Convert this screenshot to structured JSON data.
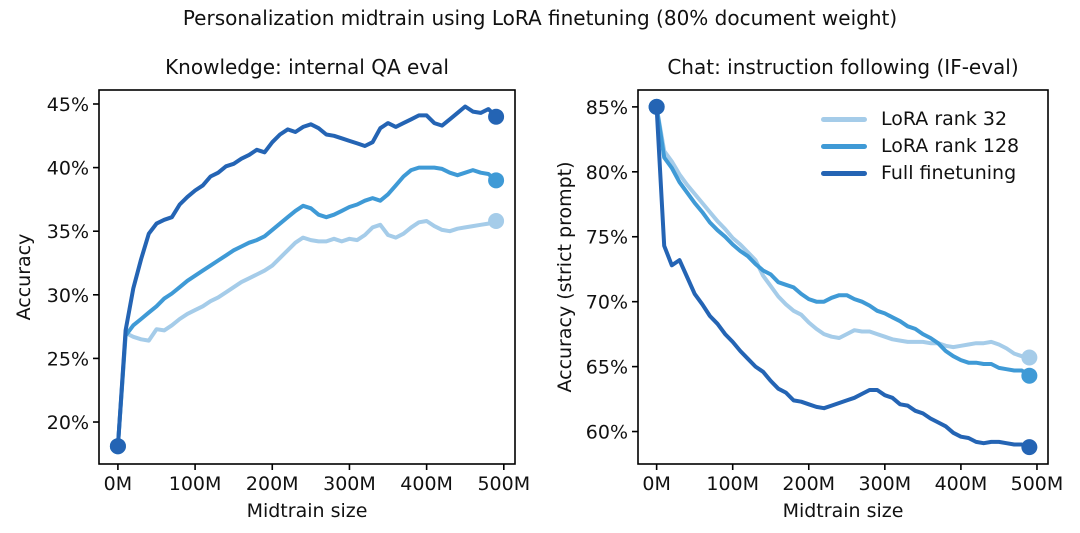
{
  "figure": {
    "title": "Personalization midtrain using LoRA finetuning (80% document weight)"
  },
  "colors": {
    "lora_rank_32": "#a5cce9",
    "lora_rank_128": "#3f9ad6",
    "full_finetuning": "#2464b4"
  },
  "legend": {
    "entries": [
      {
        "label": "LoRA rank 32",
        "color": "#a5cce9"
      },
      {
        "label": "LoRA rank 128",
        "color": "#3f9ad6"
      },
      {
        "label": "Full finetuning",
        "color": "#2464b4"
      }
    ]
  },
  "chart_data": [
    {
      "type": "line",
      "title": "Knowledge: internal QA eval",
      "xlabel": "Midtrain size",
      "ylabel": "Accuracy",
      "legend_position": "none",
      "grid": false,
      "xlim": [
        -24.5,
        514.5
      ],
      "ylim": [
        16.7,
        46.1
      ],
      "xticks": [
        0,
        100,
        200,
        300,
        400,
        500
      ],
      "xtick_labels": [
        "0M",
        "100M",
        "200M",
        "300M",
        "400M",
        "500M"
      ],
      "yticks": [
        20,
        25,
        30,
        35,
        40,
        45
      ],
      "ytick_labels": [
        "20%",
        "25%",
        "30%",
        "35%",
        "40%",
        "45%"
      ],
      "x": [
        0,
        10,
        20,
        30,
        40,
        50,
        60,
        70,
        80,
        90,
        100,
        110,
        120,
        130,
        140,
        150,
        160,
        170,
        180,
        190,
        200,
        210,
        220,
        230,
        240,
        250,
        260,
        270,
        280,
        290,
        300,
        310,
        320,
        330,
        340,
        350,
        360,
        370,
        380,
        390,
        400,
        410,
        420,
        430,
        440,
        450,
        460,
        470,
        480,
        490
      ],
      "series": [
        {
          "name": "LoRA rank 32",
          "color": "#a5cce9",
          "values": [
            18.1,
            27.0,
            26.7,
            26.5,
            26.4,
            27.3,
            27.2,
            27.6,
            28.1,
            28.5,
            28.8,
            29.1,
            29.5,
            29.8,
            30.2,
            30.6,
            31.0,
            31.3,
            31.6,
            31.9,
            32.3,
            32.9,
            33.5,
            34.1,
            34.5,
            34.3,
            34.2,
            34.2,
            34.4,
            34.2,
            34.4,
            34.3,
            34.7,
            35.3,
            35.5,
            34.7,
            34.5,
            34.8,
            35.3,
            35.7,
            35.8,
            35.4,
            35.1,
            35.0,
            35.2,
            35.3,
            35.4,
            35.5,
            35.6,
            35.8
          ]
        },
        {
          "name": "LoRA rank 128",
          "color": "#3f9ad6",
          "values": [
            18.1,
            26.8,
            27.6,
            28.1,
            28.6,
            29.1,
            29.7,
            30.1,
            30.6,
            31.1,
            31.5,
            31.9,
            32.3,
            32.7,
            33.1,
            33.5,
            33.8,
            34.1,
            34.3,
            34.6,
            35.1,
            35.6,
            36.1,
            36.6,
            37.0,
            36.8,
            36.3,
            36.1,
            36.3,
            36.6,
            36.9,
            37.1,
            37.4,
            37.6,
            37.4,
            37.9,
            38.6,
            39.3,
            39.8,
            40.0,
            40.0,
            40.0,
            39.9,
            39.6,
            39.4,
            39.6,
            39.8,
            39.6,
            39.5,
            39.0
          ]
        },
        {
          "name": "Full finetuning",
          "color": "#2464b4",
          "values": [
            18.1,
            27.2,
            30.5,
            32.8,
            34.8,
            35.6,
            35.9,
            36.1,
            37.1,
            37.7,
            38.2,
            38.6,
            39.3,
            39.6,
            40.1,
            40.3,
            40.7,
            41.0,
            41.4,
            41.2,
            42.0,
            42.6,
            43.0,
            42.8,
            43.2,
            43.4,
            43.1,
            42.6,
            42.5,
            42.3,
            42.1,
            41.9,
            41.7,
            42.0,
            43.1,
            43.5,
            43.2,
            43.5,
            43.8,
            44.1,
            44.1,
            43.5,
            43.3,
            43.8,
            44.3,
            44.8,
            44.4,
            44.3,
            44.6,
            44.0
          ]
        }
      ]
    },
    {
      "type": "line",
      "title": "Chat: instruction following (IF-eval)",
      "xlabel": "Midtrain size",
      "ylabel": "Accuracy (strict prompt)",
      "legend_position": "upper right",
      "grid": false,
      "xlim": [
        -24.5,
        514.5
      ],
      "ylim": [
        57.5,
        86.3
      ],
      "xticks": [
        0,
        100,
        200,
        300,
        400,
        500
      ],
      "xtick_labels": [
        "0M",
        "100M",
        "200M",
        "300M",
        "400M",
        "500M"
      ],
      "yticks": [
        60,
        65,
        70,
        75,
        80,
        85
      ],
      "ytick_labels": [
        "60%",
        "65%",
        "70%",
        "75%",
        "80%",
        "85%"
      ],
      "x": [
        0,
        10,
        20,
        30,
        40,
        50,
        60,
        70,
        80,
        90,
        100,
        110,
        120,
        130,
        140,
        150,
        160,
        170,
        180,
        190,
        200,
        210,
        220,
        230,
        240,
        250,
        260,
        270,
        280,
        290,
        300,
        310,
        320,
        330,
        340,
        350,
        360,
        370,
        380,
        390,
        400,
        410,
        420,
        430,
        440,
        450,
        460,
        470,
        480,
        490
      ],
      "series": [
        {
          "name": "LoRA rank 32",
          "color": "#a5cce9",
          "values": [
            85.0,
            81.6,
            80.8,
            79.8,
            79.0,
            78.3,
            77.6,
            76.9,
            76.2,
            75.6,
            74.9,
            74.4,
            73.8,
            73.2,
            72.0,
            71.2,
            70.4,
            69.8,
            69.3,
            69.0,
            68.4,
            67.9,
            67.5,
            67.3,
            67.2,
            67.5,
            67.8,
            67.7,
            67.7,
            67.5,
            67.3,
            67.1,
            67.0,
            66.9,
            66.9,
            66.9,
            66.8,
            66.8,
            66.6,
            66.5,
            66.6,
            66.7,
            66.8,
            66.8,
            66.9,
            66.7,
            66.4,
            66.0,
            65.8,
            65.7
          ]
        },
        {
          "name": "LoRA rank 128",
          "color": "#3f9ad6",
          "values": [
            85.0,
            81.1,
            80.3,
            79.2,
            78.4,
            77.6,
            76.9,
            76.1,
            75.5,
            75.0,
            74.4,
            73.9,
            73.5,
            72.9,
            72.4,
            72.1,
            71.5,
            71.3,
            71.1,
            70.6,
            70.2,
            70.0,
            70.0,
            70.3,
            70.5,
            70.5,
            70.2,
            70.0,
            69.7,
            69.3,
            69.1,
            68.8,
            68.5,
            68.1,
            67.9,
            67.5,
            67.2,
            66.8,
            66.2,
            65.8,
            65.5,
            65.3,
            65.3,
            65.2,
            65.2,
            64.9,
            64.8,
            64.7,
            64.7,
            64.3
          ]
        },
        {
          "name": "Full finetuning",
          "color": "#2464b4",
          "values": [
            85.0,
            74.3,
            72.8,
            73.2,
            71.9,
            70.6,
            69.8,
            68.9,
            68.3,
            67.5,
            66.9,
            66.2,
            65.6,
            65.0,
            64.6,
            63.9,
            63.3,
            63.0,
            62.4,
            62.3,
            62.1,
            61.9,
            61.8,
            62.0,
            62.2,
            62.4,
            62.6,
            62.9,
            63.2,
            63.2,
            62.8,
            62.6,
            62.1,
            62.0,
            61.6,
            61.4,
            61.0,
            60.7,
            60.4,
            59.9,
            59.6,
            59.5,
            59.2,
            59.1,
            59.2,
            59.2,
            59.1,
            59.0,
            59.0,
            58.8
          ]
        }
      ]
    }
  ]
}
